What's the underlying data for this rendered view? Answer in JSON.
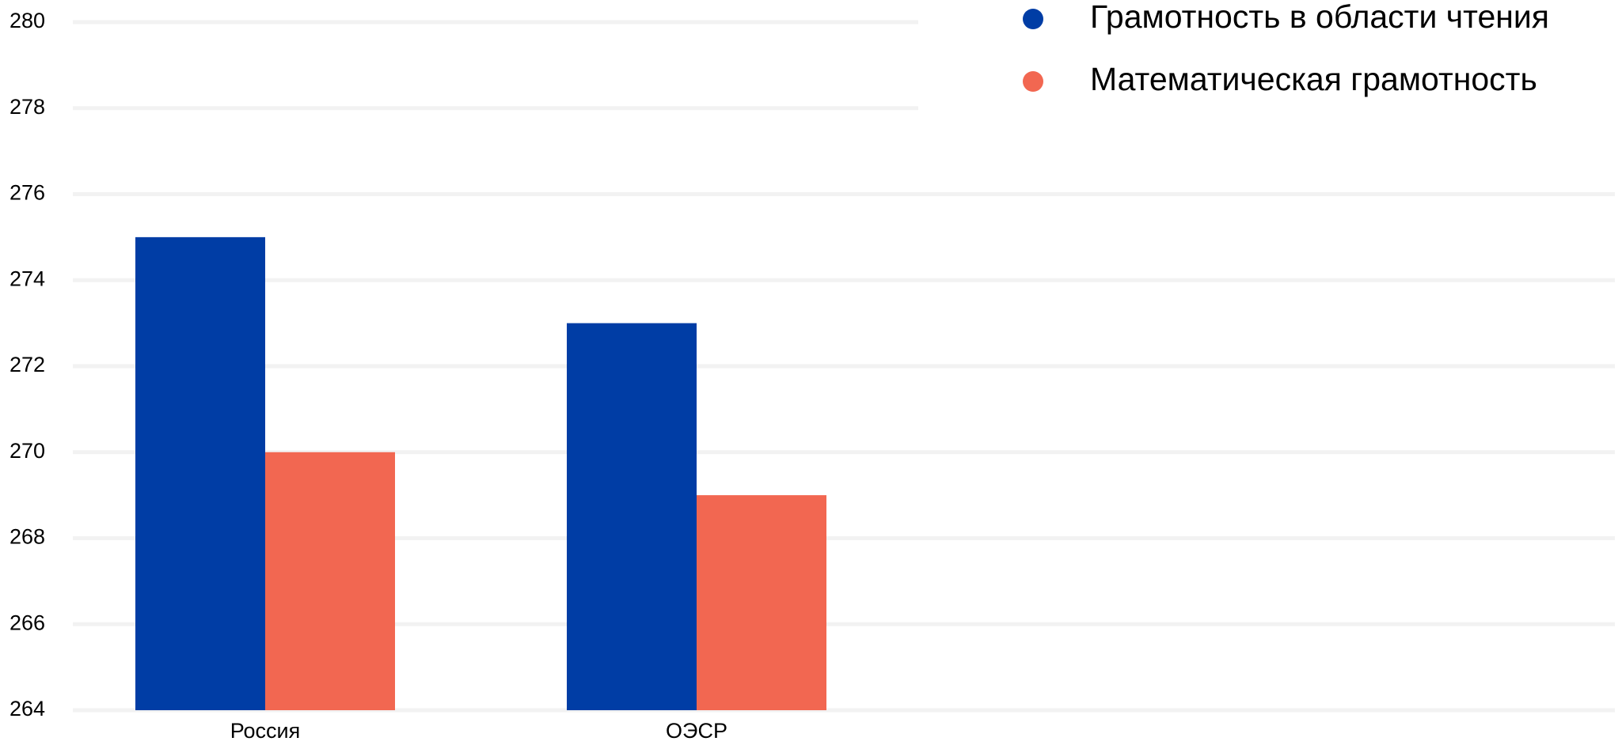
{
  "chart_data": {
    "type": "bar",
    "title": "",
    "xlabel": "",
    "ylabel": "",
    "categories": [
      "Россия",
      "ОЭСР"
    ],
    "series": [
      {
        "name": "Грамотность в области чтения",
        "values": [
          275,
          273
        ],
        "color": "#003DA5"
      },
      {
        "name": "Математическая грамотность",
        "values": [
          270,
          269
        ],
        "color": "#F26751"
      }
    ],
    "ylim": [
      264,
      280
    ],
    "yticks": [
      "264",
      "266",
      "268",
      "270",
      "272",
      "274",
      "276",
      "278",
      "280"
    ],
    "grid": true,
    "grid_color": "#F2F2F2",
    "legend_position": "top-right",
    "legend_marker": "circle"
  }
}
